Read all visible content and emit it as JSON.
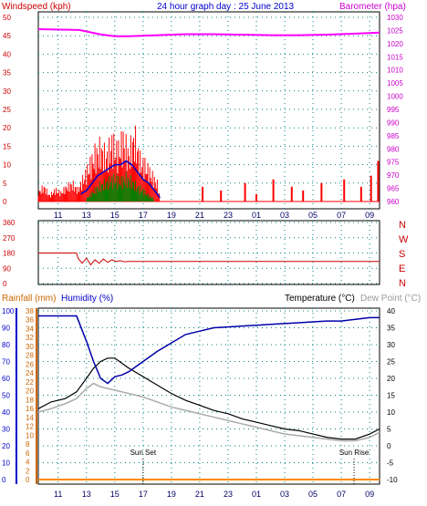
{
  "header": {
    "wind_label": "Windspeed (kph)",
    "title": "24 hour graph day : 25 June 2013",
    "baro_label": "Barometer (hpa)"
  },
  "bottom_header": {
    "rain_label": "Rainfall (mm)",
    "hum_label": "Humidity (%)",
    "temp_label": "Temperature (°C)",
    "dew_label": "Dew Point (°C)"
  },
  "colors": {
    "wind_gust": "#ff0000",
    "wind_avg": "#0000cc",
    "wind_low": "#008000",
    "barometer": "#ff00ff",
    "direction": "#cc0000",
    "humidity": "#0000aa",
    "temperature": "#000000",
    "dewpoint": "#aaaaaa",
    "rainfall": "#ff8800",
    "grid": "#008080",
    "left_axis": "#cc0000",
    "right_axis": "#cc00cc",
    "left_axis_bottom": "#0000cc"
  },
  "chart_data": [
    {
      "type": "line",
      "name": "wind-barometer",
      "x_ticks": [
        "11",
        "13",
        "15",
        "17",
        "19",
        "21",
        "23",
        "01",
        "03",
        "05",
        "07",
        "09"
      ],
      "y_left": {
        "label": "Windspeed (kph)",
        "ticks": [
          0,
          5,
          10,
          15,
          20,
          25,
          30,
          35,
          40,
          45,
          50
        ],
        "lim": [
          0,
          50
        ]
      },
      "y_right": {
        "label": "Barometer (hpa)",
        "ticks": [
          960,
          965,
          970,
          975,
          980,
          985,
          990,
          995,
          1000,
          1005,
          1010,
          1015,
          1020,
          1025,
          1030
        ],
        "lim": [
          960,
          1030
        ]
      },
      "x_hours": [
        9.6,
        12.5,
        14,
        15,
        16,
        18,
        20,
        22,
        24,
        26,
        28,
        30,
        32,
        33.7
      ],
      "barometer": [
        1025.5,
        1025.2,
        1023.5,
        1022.8,
        1022.8,
        1023.2,
        1023.6,
        1023.6,
        1023.4,
        1023.2,
        1023.2,
        1023.4,
        1023.8,
        1024.2
      ],
      "gust": [
        [
          9.6,
          3
        ],
        [
          10,
          5
        ],
        [
          10.4,
          2
        ],
        [
          10.8,
          4
        ],
        [
          11.2,
          3
        ],
        [
          11.6,
          5
        ],
        [
          12,
          6
        ],
        [
          12.4,
          4
        ],
        [
          12.8,
          8
        ],
        [
          13.2,
          12
        ],
        [
          13.6,
          16
        ],
        [
          14,
          18
        ],
        [
          14.4,
          15
        ],
        [
          14.8,
          20
        ],
        [
          15.2,
          17
        ],
        [
          15.6,
          21
        ],
        [
          16,
          16
        ],
        [
          16.4,
          22
        ],
        [
          16.8,
          14
        ],
        [
          17.2,
          12
        ],
        [
          17.6,
          9
        ],
        [
          18,
          6
        ],
        [
          18.2,
          1
        ]
      ],
      "avg": [
        [
          12.6,
          2
        ],
        [
          13,
          3
        ],
        [
          13.4,
          5
        ],
        [
          13.8,
          7
        ],
        [
          14.2,
          8
        ],
        [
          14.6,
          9
        ],
        [
          15,
          10
        ],
        [
          15.4,
          10
        ],
        [
          15.8,
          11
        ],
        [
          16.2,
          10
        ],
        [
          16.6,
          8
        ],
        [
          17,
          6
        ],
        [
          17.4,
          5
        ],
        [
          17.8,
          3
        ],
        [
          18.2,
          1
        ]
      ],
      "low": [
        [
          13,
          1
        ],
        [
          13.4,
          3
        ],
        [
          13.8,
          5
        ],
        [
          14.2,
          6
        ],
        [
          14.6,
          7
        ],
        [
          15,
          8
        ],
        [
          15.4,
          7
        ],
        [
          15.8,
          8
        ],
        [
          16.2,
          7
        ],
        [
          16.6,
          5
        ],
        [
          17,
          4
        ],
        [
          17.4,
          2
        ],
        [
          17.8,
          1
        ]
      ],
      "late_gust": [
        [
          21.2,
          4
        ],
        [
          22.5,
          3
        ],
        [
          24.2,
          5
        ],
        [
          25,
          2
        ],
        [
          26.2,
          6
        ],
        [
          27.5,
          4
        ],
        [
          28.3,
          3
        ],
        [
          29.6,
          5
        ],
        [
          31.2,
          6
        ],
        [
          32.4,
          4
        ],
        [
          33.1,
          7
        ],
        [
          33.6,
          11
        ]
      ]
    },
    {
      "type": "line",
      "name": "wind-direction",
      "y_left": {
        "ticks": [
          0,
          90,
          180,
          270,
          360
        ],
        "lim": [
          0,
          360
        ]
      },
      "compass": [
        "N",
        "W",
        "S",
        "E",
        "N"
      ],
      "x_hours": [
        9.6,
        12.3,
        12.4,
        12.7,
        13.0,
        13.3,
        13.6,
        13.9,
        14.2,
        14.5,
        14.8,
        15.1,
        15.4,
        15.7,
        16.0,
        33.7
      ],
      "direction": [
        180,
        180,
        150,
        120,
        150,
        110,
        140,
        120,
        145,
        125,
        140,
        130,
        135,
        128,
        130,
        130
      ]
    },
    {
      "type": "line",
      "name": "temperature-humidity",
      "x_ticks": [
        "11",
        "13",
        "15",
        "17",
        "19",
        "21",
        "23",
        "01",
        "03",
        "05",
        "07",
        "09"
      ],
      "y_left": {
        "label": "Humidity (%)",
        "ticks": [
          0,
          10,
          20,
          30,
          40,
          50,
          60,
          70,
          80,
          90,
          100
        ],
        "lim": [
          0,
          100
        ]
      },
      "y_left_rain": {
        "label": "Rainfall (mm)",
        "ticks": [
          0,
          2,
          4,
          6,
          8,
          10,
          12,
          14,
          16,
          18,
          20,
          22,
          24,
          26,
          28,
          30,
          32,
          34,
          36,
          38
        ],
        "lim": [
          0,
          38
        ]
      },
      "y_right": {
        "label": "Temperature (°C)",
        "ticks": [
          -10,
          -5,
          0,
          5,
          10,
          15,
          20,
          25,
          30,
          35,
          40
        ],
        "lim": [
          -10,
          40
        ]
      },
      "annotations": [
        {
          "label": "Sun Set",
          "hour": 17.0
        },
        {
          "label": "Sun Rise",
          "hour": 31.9
        }
      ],
      "x_hours": [
        9.6,
        10.5,
        11.5,
        12.3,
        13.0,
        13.5,
        14.0,
        14.5,
        15.0,
        15.5,
        16.0,
        17.0,
        18.0,
        19.0,
        20.0,
        21.0,
        22.0,
        23.0,
        24.0,
        25.0,
        26.0,
        27.0,
        28.0,
        29.0,
        30.0,
        31.0,
        32.0,
        33.0,
        33.7
      ],
      "humidity": [
        97,
        97,
        97,
        97,
        82,
        70,
        60,
        57,
        61,
        62,
        64,
        70,
        76,
        81,
        86,
        88,
        90,
        90.5,
        91,
        91.5,
        92,
        92.5,
        93,
        93.5,
        94,
        94,
        95,
        96,
        96
      ],
      "temperature": [
        11,
        13,
        14,
        16,
        20,
        23,
        25,
        26,
        26,
        24.5,
        23,
        20.5,
        18,
        15.5,
        13.5,
        12,
        10.5,
        9.5,
        8,
        7,
        6,
        5,
        4.5,
        3.5,
        2.5,
        2,
        2,
        3.5,
        5
      ],
      "dewpoint": [
        10,
        11,
        12.5,
        14,
        17,
        18.5,
        17.5,
        17,
        16.5,
        16,
        15.5,
        14.5,
        13,
        11.5,
        10.5,
        9.5,
        8.5,
        7.5,
        6.5,
        5.5,
        4.5,
        3.5,
        3,
        2.5,
        2,
        1.5,
        1.5,
        2.5,
        4
      ],
      "rainfall": [
        0,
        0,
        0,
        0,
        0,
        0,
        0,
        0,
        0,
        0,
        0,
        0,
        0,
        0,
        0,
        0,
        0,
        0,
        0,
        0,
        0,
        0,
        0,
        0,
        0,
        0,
        0,
        0,
        0
      ]
    }
  ]
}
